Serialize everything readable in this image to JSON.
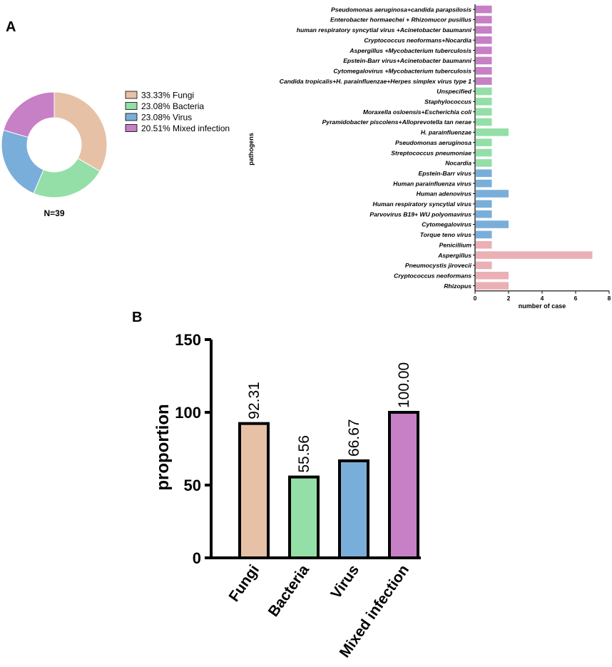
{
  "panel_labels": {
    "a": "A",
    "b": "B"
  },
  "colors": {
    "Fungi": "#E6C1A6",
    "Bacteria": "#93DFA7",
    "Virus": "#7AAEDA",
    "Mixed infection": "#C77FC6",
    "hbar_Fungi": "#EBB0B5",
    "axis": "#000000"
  },
  "chart_data": [
    {
      "id": "donut",
      "type": "pie",
      "variant": "donut",
      "footnote": "N=39",
      "slices": [
        {
          "category": "Fungi",
          "percent_label": "33.33%",
          "value": 33.33
        },
        {
          "category": "Bacteria",
          "percent_label": "23.08%",
          "value": 23.08
        },
        {
          "category": "Virus",
          "percent_label": "23.08%",
          "value": 23.08
        },
        {
          "category": "Mixed infection",
          "percent_label": "20.51%",
          "value": 20.51
        }
      ],
      "legend_position": "right"
    },
    {
      "id": "pathogens",
      "type": "bar",
      "orientation": "horizontal",
      "ylabel": "pathogens",
      "xlabel": "number of case",
      "xlim": [
        0,
        8
      ],
      "xticks": [
        0,
        2,
        4,
        6,
        8
      ],
      "bars": [
        {
          "label": "Pseudomonas aeruginosa+candida parapsilosis",
          "value": 1,
          "group": "Mixed infection"
        },
        {
          "label": "Enterobacter hormaechei + Rhizomucor pusillus",
          "value": 1,
          "group": "Mixed infection"
        },
        {
          "label": "human respiratory syncytial virus +Acinetobacter baumanni",
          "value": 1,
          "group": "Mixed infection"
        },
        {
          "label": "Cryptococcus neoformans+Nocardia",
          "value": 1,
          "group": "Mixed infection"
        },
        {
          "label": "Aspergillus +Mycobacterium tuberculosis",
          "value": 1,
          "group": "Mixed infection"
        },
        {
          "label": "Epstein-Barr virus+Acinetobacter baumanni",
          "value": 1,
          "group": "Mixed infection"
        },
        {
          "label": "Cytomegalovirus +Mycobacterium tuberculosis",
          "value": 1,
          "group": "Mixed infection"
        },
        {
          "label": "Candida tropicalis+H. parainfluenzae+Herpes simplex virus type 1",
          "value": 1,
          "group": "Mixed infection"
        },
        {
          "label": "Unspecified",
          "value": 1,
          "group": "Bacteria"
        },
        {
          "label": "Staphylococcus",
          "value": 1,
          "group": "Bacteria"
        },
        {
          "label": "Moraxella osloensis+Escherichia coli",
          "value": 1,
          "group": "Bacteria"
        },
        {
          "label": "Pyramidobacter piscolens+Alloprevotella tan nerae",
          "value": 1,
          "group": "Bacteria"
        },
        {
          "label": "H. parainfluenzae",
          "value": 2,
          "group": "Bacteria"
        },
        {
          "label": "Pseudomonas aeruginosa",
          "value": 1,
          "group": "Bacteria"
        },
        {
          "label": "Streptococcus pneumoniae",
          "value": 1,
          "group": "Bacteria"
        },
        {
          "label": "Nocardia",
          "value": 1,
          "group": "Bacteria"
        },
        {
          "label": "Epstein-Barr virus",
          "value": 1,
          "group": "Virus"
        },
        {
          "label": "Human parainfluenza virus",
          "value": 1,
          "group": "Virus"
        },
        {
          "label": "Human adenovirus",
          "value": 2,
          "group": "Virus"
        },
        {
          "label": "Human respiratory syncytial virus",
          "value": 1,
          "group": "Virus"
        },
        {
          "label": "Parvovirus B19+ WU polyomavirus",
          "value": 1,
          "group": "Virus"
        },
        {
          "label": "Cytomegalovirus",
          "value": 2,
          "group": "Virus"
        },
        {
          "label": "Torque teno virus",
          "value": 1,
          "group": "Virus"
        },
        {
          "label": "Penicillium",
          "value": 1,
          "group": "Fungi"
        },
        {
          "label": "Aspergillus",
          "value": 7,
          "group": "Fungi"
        },
        {
          "label": "Pneumocystis jirovecii",
          "value": 1,
          "group": "Fungi"
        },
        {
          "label": "Cryptococcus neoformans",
          "value": 2,
          "group": "Fungi"
        },
        {
          "label": "Rhizopus",
          "value": 2,
          "group": "Fungi"
        }
      ]
    },
    {
      "id": "proportion",
      "type": "bar",
      "orientation": "vertical",
      "ylabel": "proportion",
      "xlabel": "",
      "ylim": [
        0,
        150
      ],
      "yticks": [
        0,
        50,
        100,
        150
      ],
      "categories": [
        "Fungi",
        "Bacteria",
        "Virus",
        "Mixed infection"
      ],
      "values": [
        92.31,
        55.56,
        66.67,
        100.0
      ],
      "value_labels": [
        "92.31",
        "55.56",
        "66.67",
        "100.00"
      ]
    }
  ]
}
